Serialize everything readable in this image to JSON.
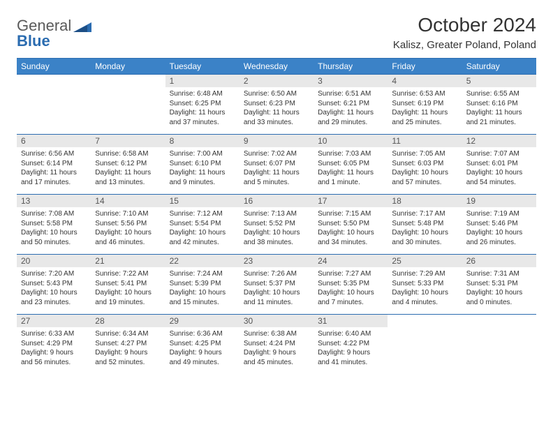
{
  "brand": {
    "part1": "General",
    "part2": "Blue"
  },
  "title": "October 2024",
  "location": "Kalisz, Greater Poland, Poland",
  "colors": {
    "header_bg": "#3b82c7",
    "border": "#2b6cb0",
    "daynum_bg": "#e8e8e8",
    "text": "#333333"
  },
  "columns": [
    "Sunday",
    "Monday",
    "Tuesday",
    "Wednesday",
    "Thursday",
    "Friday",
    "Saturday"
  ],
  "weeks": [
    [
      null,
      null,
      {
        "n": "1",
        "sr": "Sunrise: 6:48 AM",
        "ss": "Sunset: 6:25 PM",
        "dl": "Daylight: 11 hours and 37 minutes."
      },
      {
        "n": "2",
        "sr": "Sunrise: 6:50 AM",
        "ss": "Sunset: 6:23 PM",
        "dl": "Daylight: 11 hours and 33 minutes."
      },
      {
        "n": "3",
        "sr": "Sunrise: 6:51 AM",
        "ss": "Sunset: 6:21 PM",
        "dl": "Daylight: 11 hours and 29 minutes."
      },
      {
        "n": "4",
        "sr": "Sunrise: 6:53 AM",
        "ss": "Sunset: 6:19 PM",
        "dl": "Daylight: 11 hours and 25 minutes."
      },
      {
        "n": "5",
        "sr": "Sunrise: 6:55 AM",
        "ss": "Sunset: 6:16 PM",
        "dl": "Daylight: 11 hours and 21 minutes."
      }
    ],
    [
      {
        "n": "6",
        "sr": "Sunrise: 6:56 AM",
        "ss": "Sunset: 6:14 PM",
        "dl": "Daylight: 11 hours and 17 minutes."
      },
      {
        "n": "7",
        "sr": "Sunrise: 6:58 AM",
        "ss": "Sunset: 6:12 PM",
        "dl": "Daylight: 11 hours and 13 minutes."
      },
      {
        "n": "8",
        "sr": "Sunrise: 7:00 AM",
        "ss": "Sunset: 6:10 PM",
        "dl": "Daylight: 11 hours and 9 minutes."
      },
      {
        "n": "9",
        "sr": "Sunrise: 7:02 AM",
        "ss": "Sunset: 6:07 PM",
        "dl": "Daylight: 11 hours and 5 minutes."
      },
      {
        "n": "10",
        "sr": "Sunrise: 7:03 AM",
        "ss": "Sunset: 6:05 PM",
        "dl": "Daylight: 11 hours and 1 minute."
      },
      {
        "n": "11",
        "sr": "Sunrise: 7:05 AM",
        "ss": "Sunset: 6:03 PM",
        "dl": "Daylight: 10 hours and 57 minutes."
      },
      {
        "n": "12",
        "sr": "Sunrise: 7:07 AM",
        "ss": "Sunset: 6:01 PM",
        "dl": "Daylight: 10 hours and 54 minutes."
      }
    ],
    [
      {
        "n": "13",
        "sr": "Sunrise: 7:08 AM",
        "ss": "Sunset: 5:58 PM",
        "dl": "Daylight: 10 hours and 50 minutes."
      },
      {
        "n": "14",
        "sr": "Sunrise: 7:10 AM",
        "ss": "Sunset: 5:56 PM",
        "dl": "Daylight: 10 hours and 46 minutes."
      },
      {
        "n": "15",
        "sr": "Sunrise: 7:12 AM",
        "ss": "Sunset: 5:54 PM",
        "dl": "Daylight: 10 hours and 42 minutes."
      },
      {
        "n": "16",
        "sr": "Sunrise: 7:13 AM",
        "ss": "Sunset: 5:52 PM",
        "dl": "Daylight: 10 hours and 38 minutes."
      },
      {
        "n": "17",
        "sr": "Sunrise: 7:15 AM",
        "ss": "Sunset: 5:50 PM",
        "dl": "Daylight: 10 hours and 34 minutes."
      },
      {
        "n": "18",
        "sr": "Sunrise: 7:17 AM",
        "ss": "Sunset: 5:48 PM",
        "dl": "Daylight: 10 hours and 30 minutes."
      },
      {
        "n": "19",
        "sr": "Sunrise: 7:19 AM",
        "ss": "Sunset: 5:46 PM",
        "dl": "Daylight: 10 hours and 26 minutes."
      }
    ],
    [
      {
        "n": "20",
        "sr": "Sunrise: 7:20 AM",
        "ss": "Sunset: 5:43 PM",
        "dl": "Daylight: 10 hours and 23 minutes."
      },
      {
        "n": "21",
        "sr": "Sunrise: 7:22 AM",
        "ss": "Sunset: 5:41 PM",
        "dl": "Daylight: 10 hours and 19 minutes."
      },
      {
        "n": "22",
        "sr": "Sunrise: 7:24 AM",
        "ss": "Sunset: 5:39 PM",
        "dl": "Daylight: 10 hours and 15 minutes."
      },
      {
        "n": "23",
        "sr": "Sunrise: 7:26 AM",
        "ss": "Sunset: 5:37 PM",
        "dl": "Daylight: 10 hours and 11 minutes."
      },
      {
        "n": "24",
        "sr": "Sunrise: 7:27 AM",
        "ss": "Sunset: 5:35 PM",
        "dl": "Daylight: 10 hours and 7 minutes."
      },
      {
        "n": "25",
        "sr": "Sunrise: 7:29 AM",
        "ss": "Sunset: 5:33 PM",
        "dl": "Daylight: 10 hours and 4 minutes."
      },
      {
        "n": "26",
        "sr": "Sunrise: 7:31 AM",
        "ss": "Sunset: 5:31 PM",
        "dl": "Daylight: 10 hours and 0 minutes."
      }
    ],
    [
      {
        "n": "27",
        "sr": "Sunrise: 6:33 AM",
        "ss": "Sunset: 4:29 PM",
        "dl": "Daylight: 9 hours and 56 minutes."
      },
      {
        "n": "28",
        "sr": "Sunrise: 6:34 AM",
        "ss": "Sunset: 4:27 PM",
        "dl": "Daylight: 9 hours and 52 minutes."
      },
      {
        "n": "29",
        "sr": "Sunrise: 6:36 AM",
        "ss": "Sunset: 4:25 PM",
        "dl": "Daylight: 9 hours and 49 minutes."
      },
      {
        "n": "30",
        "sr": "Sunrise: 6:38 AM",
        "ss": "Sunset: 4:24 PM",
        "dl": "Daylight: 9 hours and 45 minutes."
      },
      {
        "n": "31",
        "sr": "Sunrise: 6:40 AM",
        "ss": "Sunset: 4:22 PM",
        "dl": "Daylight: 9 hours and 41 minutes."
      },
      null,
      null
    ]
  ]
}
